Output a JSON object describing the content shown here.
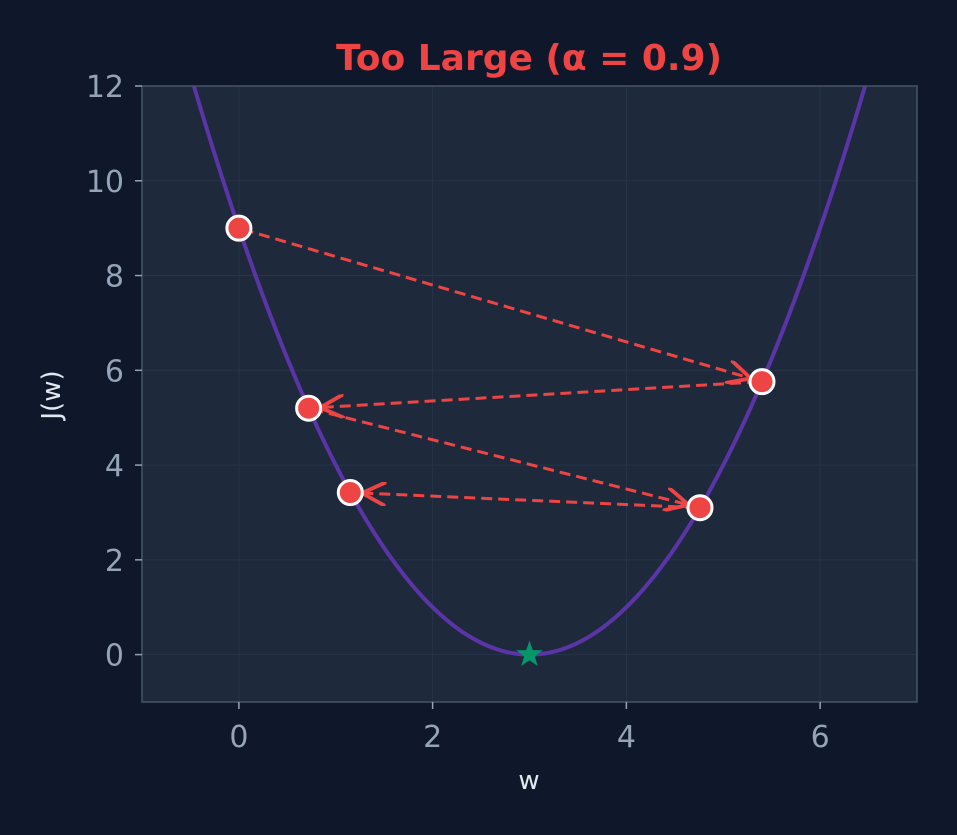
{
  "chart_data": {
    "type": "line",
    "title": "Too Large (α = 0.9)",
    "xlabel": "w",
    "ylabel": "J(w)",
    "xlim": [
      -1,
      7
    ],
    "ylim": [
      -1,
      12
    ],
    "xticks": [
      0,
      2,
      4,
      6
    ],
    "yticks": [
      0,
      2,
      4,
      6,
      8,
      10,
      12
    ],
    "grid": true,
    "curve": {
      "function": "(w - 3)^2",
      "x_start": -1,
      "x_end": 7
    },
    "steps": [
      {
        "w": 0.0,
        "J": 9.0
      },
      {
        "w": 5.4,
        "J": 5.76
      },
      {
        "w": 0.72,
        "J": 5.2
      },
      {
        "w": 4.76,
        "J": 3.1
      },
      {
        "w": 1.15,
        "J": 3.42
      }
    ],
    "minimum": {
      "w": 3,
      "J": 0
    }
  },
  "colors": {
    "background": "#0f172a",
    "plot_background": "#1e293b",
    "curve": "#5b34a8",
    "title": "#ef4444",
    "steps": "#ef4444",
    "arrows": "#ef4444",
    "minimum_marker": "#059669",
    "tick_text": "#94a3b8",
    "label_text": "#e2e8f0",
    "spine": "#475569",
    "grid": "#273449"
  }
}
